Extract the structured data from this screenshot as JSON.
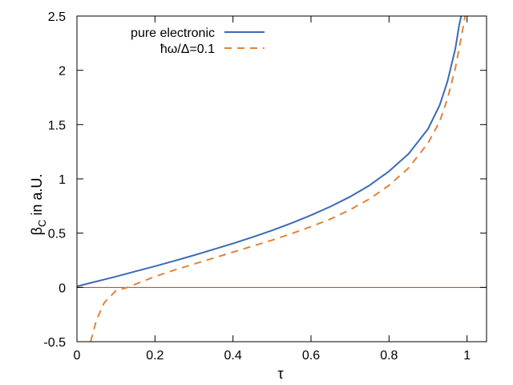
{
  "chart_data": {
    "type": "line",
    "xlabel": "τ",
    "ylabel": "β",
    "ylabel_sub": "C",
    "ylabel_suffix": " in a.U.",
    "xlim": [
      0,
      1.05
    ],
    "ylim": [
      -0.5,
      2.5
    ],
    "xticks": [
      0,
      0.2,
      0.4,
      0.6,
      0.8,
      1
    ],
    "xtick_labels": [
      "0",
      "0.2",
      "0.4",
      "0.6",
      "0.8",
      "1"
    ],
    "yticks": [
      -0.5,
      0,
      0.5,
      1,
      1.5,
      2,
      2.5
    ],
    "ytick_labels": [
      "-0.5",
      "0",
      "0.5",
      "1",
      "1.5",
      "2",
      "2.5"
    ],
    "grid": false,
    "legend_position": "top-left",
    "reference_line": {
      "y": 0,
      "color": "#d62d20"
    },
    "series": [
      {
        "name": "pure electronic",
        "style": "solid",
        "color": "#3a6ab4",
        "x": [
          0.0,
          0.05,
          0.1,
          0.15,
          0.2,
          0.25,
          0.3,
          0.35,
          0.4,
          0.45,
          0.5,
          0.55,
          0.6,
          0.65,
          0.7,
          0.75,
          0.8,
          0.85,
          0.9,
          0.93,
          0.95,
          0.97,
          0.98,
          0.985
        ],
        "y": [
          0.01,
          0.055,
          0.1,
          0.148,
          0.195,
          0.245,
          0.296,
          0.35,
          0.405,
          0.463,
          0.525,
          0.592,
          0.665,
          0.745,
          0.835,
          0.94,
          1.07,
          1.23,
          1.46,
          1.68,
          1.9,
          2.2,
          2.42,
          2.5
        ]
      },
      {
        "name": "ħω/Δ=0.1",
        "style": "dashed",
        "color": "#e0833a",
        "x": [
          0.035,
          0.05,
          0.07,
          0.1,
          0.13,
          0.15,
          0.2,
          0.25,
          0.3,
          0.35,
          0.4,
          0.45,
          0.5,
          0.55,
          0.6,
          0.65,
          0.7,
          0.75,
          0.8,
          0.85,
          0.9,
          0.93,
          0.95,
          0.97,
          0.985,
          0.995
        ],
        "y": [
          -0.5,
          -0.3,
          -0.14,
          -0.03,
          0.0,
          0.03,
          0.1,
          0.16,
          0.215,
          0.27,
          0.325,
          0.38,
          0.435,
          0.495,
          0.56,
          0.63,
          0.715,
          0.815,
          0.94,
          1.1,
          1.33,
          1.53,
          1.74,
          2.02,
          2.3,
          2.5
        ]
      }
    ]
  }
}
